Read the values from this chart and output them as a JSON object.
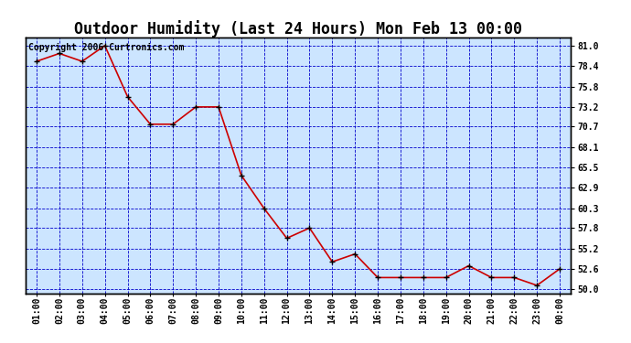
{
  "title": "Outdoor Humidity (Last 24 Hours) Mon Feb 13 00:00",
  "copyright": "Copyright 2006 Curtronics.com",
  "x_labels": [
    "01:00",
    "02:00",
    "03:00",
    "04:00",
    "05:00",
    "06:00",
    "07:00",
    "08:00",
    "09:00",
    "10:00",
    "11:00",
    "12:00",
    "13:00",
    "14:00",
    "15:00",
    "16:00",
    "17:00",
    "18:00",
    "19:00",
    "20:00",
    "21:00",
    "22:00",
    "23:00",
    "00:00"
  ],
  "x_values": [
    1,
    2,
    3,
    4,
    5,
    6,
    7,
    8,
    9,
    10,
    11,
    12,
    13,
    14,
    15,
    16,
    17,
    18,
    19,
    20,
    21,
    22,
    23,
    24
  ],
  "y_values": [
    79.0,
    80.0,
    79.0,
    81.0,
    74.5,
    71.0,
    71.0,
    73.2,
    73.2,
    64.5,
    60.3,
    56.5,
    57.8,
    53.5,
    54.5,
    51.5,
    51.5,
    51.5,
    51.5,
    53.0,
    51.5,
    51.5,
    50.5,
    52.6
  ],
  "line_color": "#cc0000",
  "marker_color": "#000000",
  "plot_bg_color": "#cce5ff",
  "grid_color": "#0000cc",
  "border_color": "#000000",
  "y_ticks": [
    50.0,
    52.6,
    55.2,
    57.8,
    60.3,
    62.9,
    65.5,
    68.1,
    70.7,
    73.2,
    75.8,
    78.4,
    81.0
  ],
  "y_min": 49.5,
  "y_max": 82.0,
  "title_fontsize": 12,
  "copyright_fontsize": 7,
  "tick_fontsize": 7,
  "figure_bg": "#ffffff"
}
